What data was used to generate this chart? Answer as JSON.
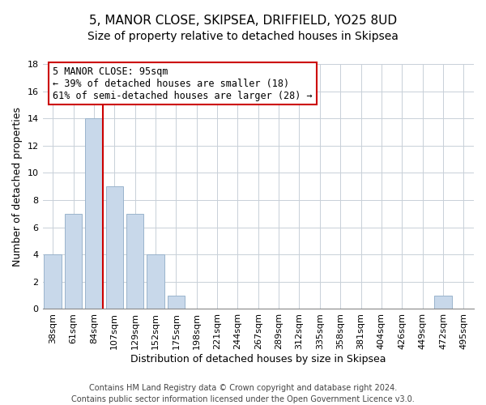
{
  "title": "5, MANOR CLOSE, SKIPSEA, DRIFFIELD, YO25 8UD",
  "subtitle": "Size of property relative to detached houses in Skipsea",
  "xlabel": "Distribution of detached houses by size in Skipsea",
  "ylabel": "Number of detached properties",
  "bar_labels": [
    "38sqm",
    "61sqm",
    "84sqm",
    "107sqm",
    "129sqm",
    "152sqm",
    "175sqm",
    "198sqm",
    "221sqm",
    "244sqm",
    "267sqm",
    "289sqm",
    "312sqm",
    "335sqm",
    "358sqm",
    "381sqm",
    "404sqm",
    "426sqm",
    "449sqm",
    "472sqm",
    "495sqm"
  ],
  "bar_values": [
    4,
    7,
    14,
    9,
    7,
    4,
    1,
    0,
    0,
    0,
    0,
    0,
    0,
    0,
    0,
    0,
    0,
    0,
    0,
    1,
    0
  ],
  "bar_color": "#c8d8ea",
  "bar_edge_color": "#9ab4cc",
  "vline_color": "#cc0000",
  "annotation_line1": "5 MANOR CLOSE: 95sqm",
  "annotation_line2": "← 39% of detached houses are smaller (18)",
  "annotation_line3": "61% of semi-detached houses are larger (28) →",
  "annotation_box_color": "#ffffff",
  "annotation_box_edge": "#cc0000",
  "ylim": [
    0,
    18
  ],
  "yticks": [
    0,
    2,
    4,
    6,
    8,
    10,
    12,
    14,
    16,
    18
  ],
  "footer": "Contains HM Land Registry data © Crown copyright and database right 2024.\nContains public sector information licensed under the Open Government Licence v3.0.",
  "bg_color": "#ffffff",
  "grid_color": "#c8d0d8",
  "title_fontsize": 11,
  "subtitle_fontsize": 10,
  "label_fontsize": 9,
  "tick_fontsize": 8,
  "annotation_fontsize": 8.5,
  "footer_fontsize": 7
}
